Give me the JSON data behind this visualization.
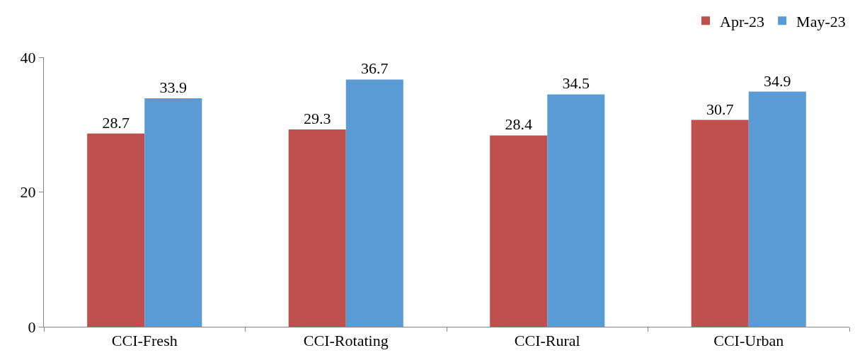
{
  "chart_data": {
    "type": "bar",
    "categories": [
      "CCI-Fresh",
      "CCI-Rotating",
      "CCI-Rural",
      "CCI-Urban"
    ],
    "series": [
      {
        "name": "Apr-23",
        "color": "#c0504d",
        "values": [
          28.7,
          29.3,
          28.4,
          30.7
        ]
      },
      {
        "name": "May-23",
        "color": "#5b9bd5",
        "values": [
          33.9,
          36.7,
          34.5,
          34.9
        ]
      }
    ],
    "ylim": [
      0,
      40
    ],
    "yticks": [
      0,
      20,
      40
    ],
    "data_labels": true,
    "legend": "top right",
    "grid": false
  }
}
